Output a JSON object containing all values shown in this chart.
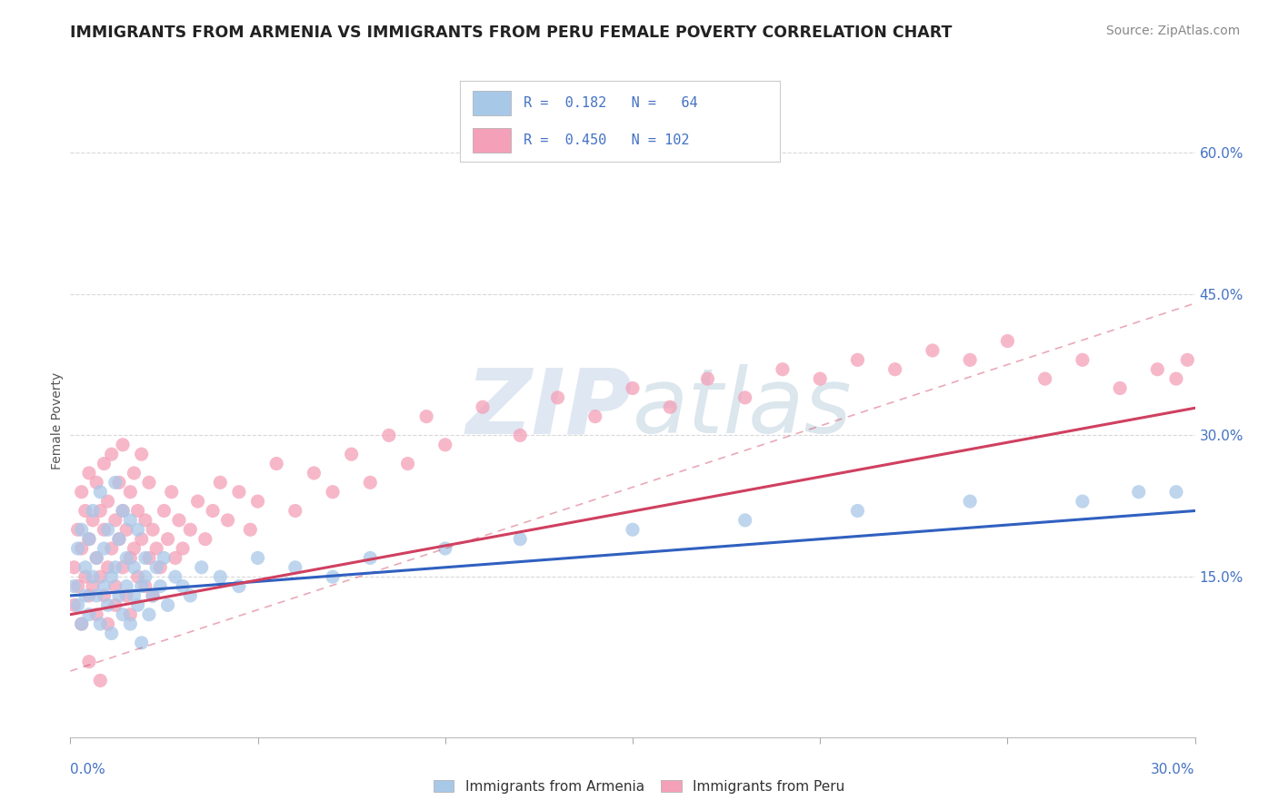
{
  "title": "IMMIGRANTS FROM ARMENIA VS IMMIGRANTS FROM PERU FEMALE POVERTY CORRELATION CHART",
  "source": "Source: ZipAtlas.com",
  "ylabel": "Female Poverty",
  "yticks": [
    "15.0%",
    "30.0%",
    "45.0%",
    "60.0%"
  ],
  "ytick_vals": [
    0.15,
    0.3,
    0.45,
    0.6
  ],
  "xlim": [
    0.0,
    0.3
  ],
  "ylim": [
    -0.02,
    0.65
  ],
  "armenia_color": "#a8c8e8",
  "peru_color": "#f4a0b8",
  "armenia_line_color": "#3060c0",
  "peru_line_color": "#d04060",
  "armenia_line_intercept": 0.13,
  "armenia_line_slope": 0.3,
  "peru_line_intercept": 0.11,
  "peru_line_slope": 0.73,
  "peru_dash_intercept": 0.05,
  "peru_dash_slope": 1.3,
  "background_color": "#ffffff",
  "grid_color": "#d8d8d8",
  "armenia_scatter_x": [
    0.001,
    0.002,
    0.002,
    0.003,
    0.003,
    0.004,
    0.004,
    0.005,
    0.005,
    0.006,
    0.006,
    0.007,
    0.007,
    0.008,
    0.008,
    0.009,
    0.009,
    0.01,
    0.01,
    0.011,
    0.011,
    0.012,
    0.012,
    0.013,
    0.013,
    0.014,
    0.014,
    0.015,
    0.015,
    0.016,
    0.016,
    0.017,
    0.017,
    0.018,
    0.018,
    0.019,
    0.019,
    0.02,
    0.02,
    0.021,
    0.022,
    0.023,
    0.024,
    0.025,
    0.026,
    0.028,
    0.03,
    0.032,
    0.035,
    0.04,
    0.045,
    0.05,
    0.06,
    0.07,
    0.08,
    0.1,
    0.12,
    0.15,
    0.18,
    0.21,
    0.24,
    0.27,
    0.285,
    0.295
  ],
  "armenia_scatter_y": [
    0.14,
    0.12,
    0.18,
    0.1,
    0.2,
    0.13,
    0.16,
    0.11,
    0.19,
    0.15,
    0.22,
    0.13,
    0.17,
    0.1,
    0.24,
    0.14,
    0.18,
    0.12,
    0.2,
    0.15,
    0.09,
    0.16,
    0.25,
    0.13,
    0.19,
    0.11,
    0.22,
    0.14,
    0.17,
    0.1,
    0.21,
    0.13,
    0.16,
    0.12,
    0.2,
    0.14,
    0.08,
    0.17,
    0.15,
    0.11,
    0.13,
    0.16,
    0.14,
    0.17,
    0.12,
    0.15,
    0.14,
    0.13,
    0.16,
    0.15,
    0.14,
    0.17,
    0.16,
    0.15,
    0.17,
    0.18,
    0.19,
    0.2,
    0.21,
    0.22,
    0.23,
    0.23,
    0.24,
    0.24
  ],
  "peru_scatter_x": [
    0.001,
    0.001,
    0.002,
    0.002,
    0.003,
    0.003,
    0.003,
    0.004,
    0.004,
    0.005,
    0.005,
    0.005,
    0.006,
    0.006,
    0.007,
    0.007,
    0.007,
    0.008,
    0.008,
    0.009,
    0.009,
    0.009,
    0.01,
    0.01,
    0.01,
    0.011,
    0.011,
    0.012,
    0.012,
    0.012,
    0.013,
    0.013,
    0.014,
    0.014,
    0.014,
    0.015,
    0.015,
    0.016,
    0.016,
    0.016,
    0.017,
    0.017,
    0.018,
    0.018,
    0.019,
    0.019,
    0.02,
    0.02,
    0.021,
    0.021,
    0.022,
    0.022,
    0.023,
    0.024,
    0.025,
    0.026,
    0.027,
    0.028,
    0.029,
    0.03,
    0.032,
    0.034,
    0.036,
    0.038,
    0.04,
    0.042,
    0.045,
    0.048,
    0.05,
    0.055,
    0.06,
    0.065,
    0.07,
    0.075,
    0.08,
    0.085,
    0.09,
    0.095,
    0.1,
    0.11,
    0.12,
    0.13,
    0.14,
    0.15,
    0.16,
    0.17,
    0.18,
    0.19,
    0.2,
    0.21,
    0.22,
    0.23,
    0.24,
    0.25,
    0.26,
    0.27,
    0.28,
    0.29,
    0.295,
    0.298,
    0.005,
    0.008
  ],
  "peru_scatter_y": [
    0.16,
    0.12,
    0.2,
    0.14,
    0.18,
    0.1,
    0.24,
    0.15,
    0.22,
    0.13,
    0.19,
    0.26,
    0.14,
    0.21,
    0.17,
    0.11,
    0.25,
    0.15,
    0.22,
    0.13,
    0.2,
    0.27,
    0.16,
    0.23,
    0.1,
    0.18,
    0.28,
    0.14,
    0.21,
    0.12,
    0.19,
    0.25,
    0.16,
    0.22,
    0.29,
    0.13,
    0.2,
    0.17,
    0.24,
    0.11,
    0.18,
    0.26,
    0.15,
    0.22,
    0.19,
    0.28,
    0.14,
    0.21,
    0.17,
    0.25,
    0.13,
    0.2,
    0.18,
    0.16,
    0.22,
    0.19,
    0.24,
    0.17,
    0.21,
    0.18,
    0.2,
    0.23,
    0.19,
    0.22,
    0.25,
    0.21,
    0.24,
    0.2,
    0.23,
    0.27,
    0.22,
    0.26,
    0.24,
    0.28,
    0.25,
    0.3,
    0.27,
    0.32,
    0.29,
    0.33,
    0.3,
    0.34,
    0.32,
    0.35,
    0.33,
    0.36,
    0.34,
    0.37,
    0.36,
    0.38,
    0.37,
    0.39,
    0.38,
    0.4,
    0.36,
    0.38,
    0.35,
    0.37,
    0.36,
    0.38,
    0.06,
    0.04
  ]
}
